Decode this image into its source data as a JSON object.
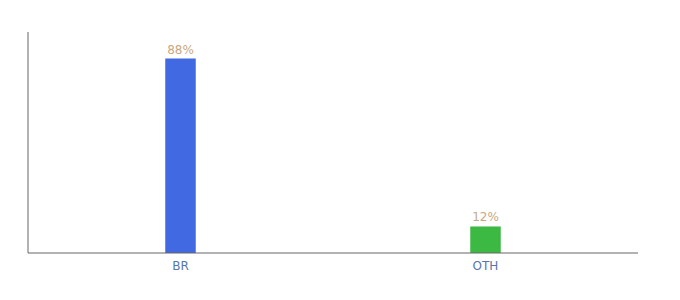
{
  "chart_data": {
    "type": "bar",
    "categories": [
      "BR",
      "OTH"
    ],
    "values": [
      88,
      12
    ],
    "value_labels": [
      "88%",
      "12%"
    ],
    "colors": [
      "#4169e1",
      "#3cb943"
    ],
    "ylim": [
      0,
      100
    ],
    "data_labels": true,
    "tick_labels": "x"
  }
}
